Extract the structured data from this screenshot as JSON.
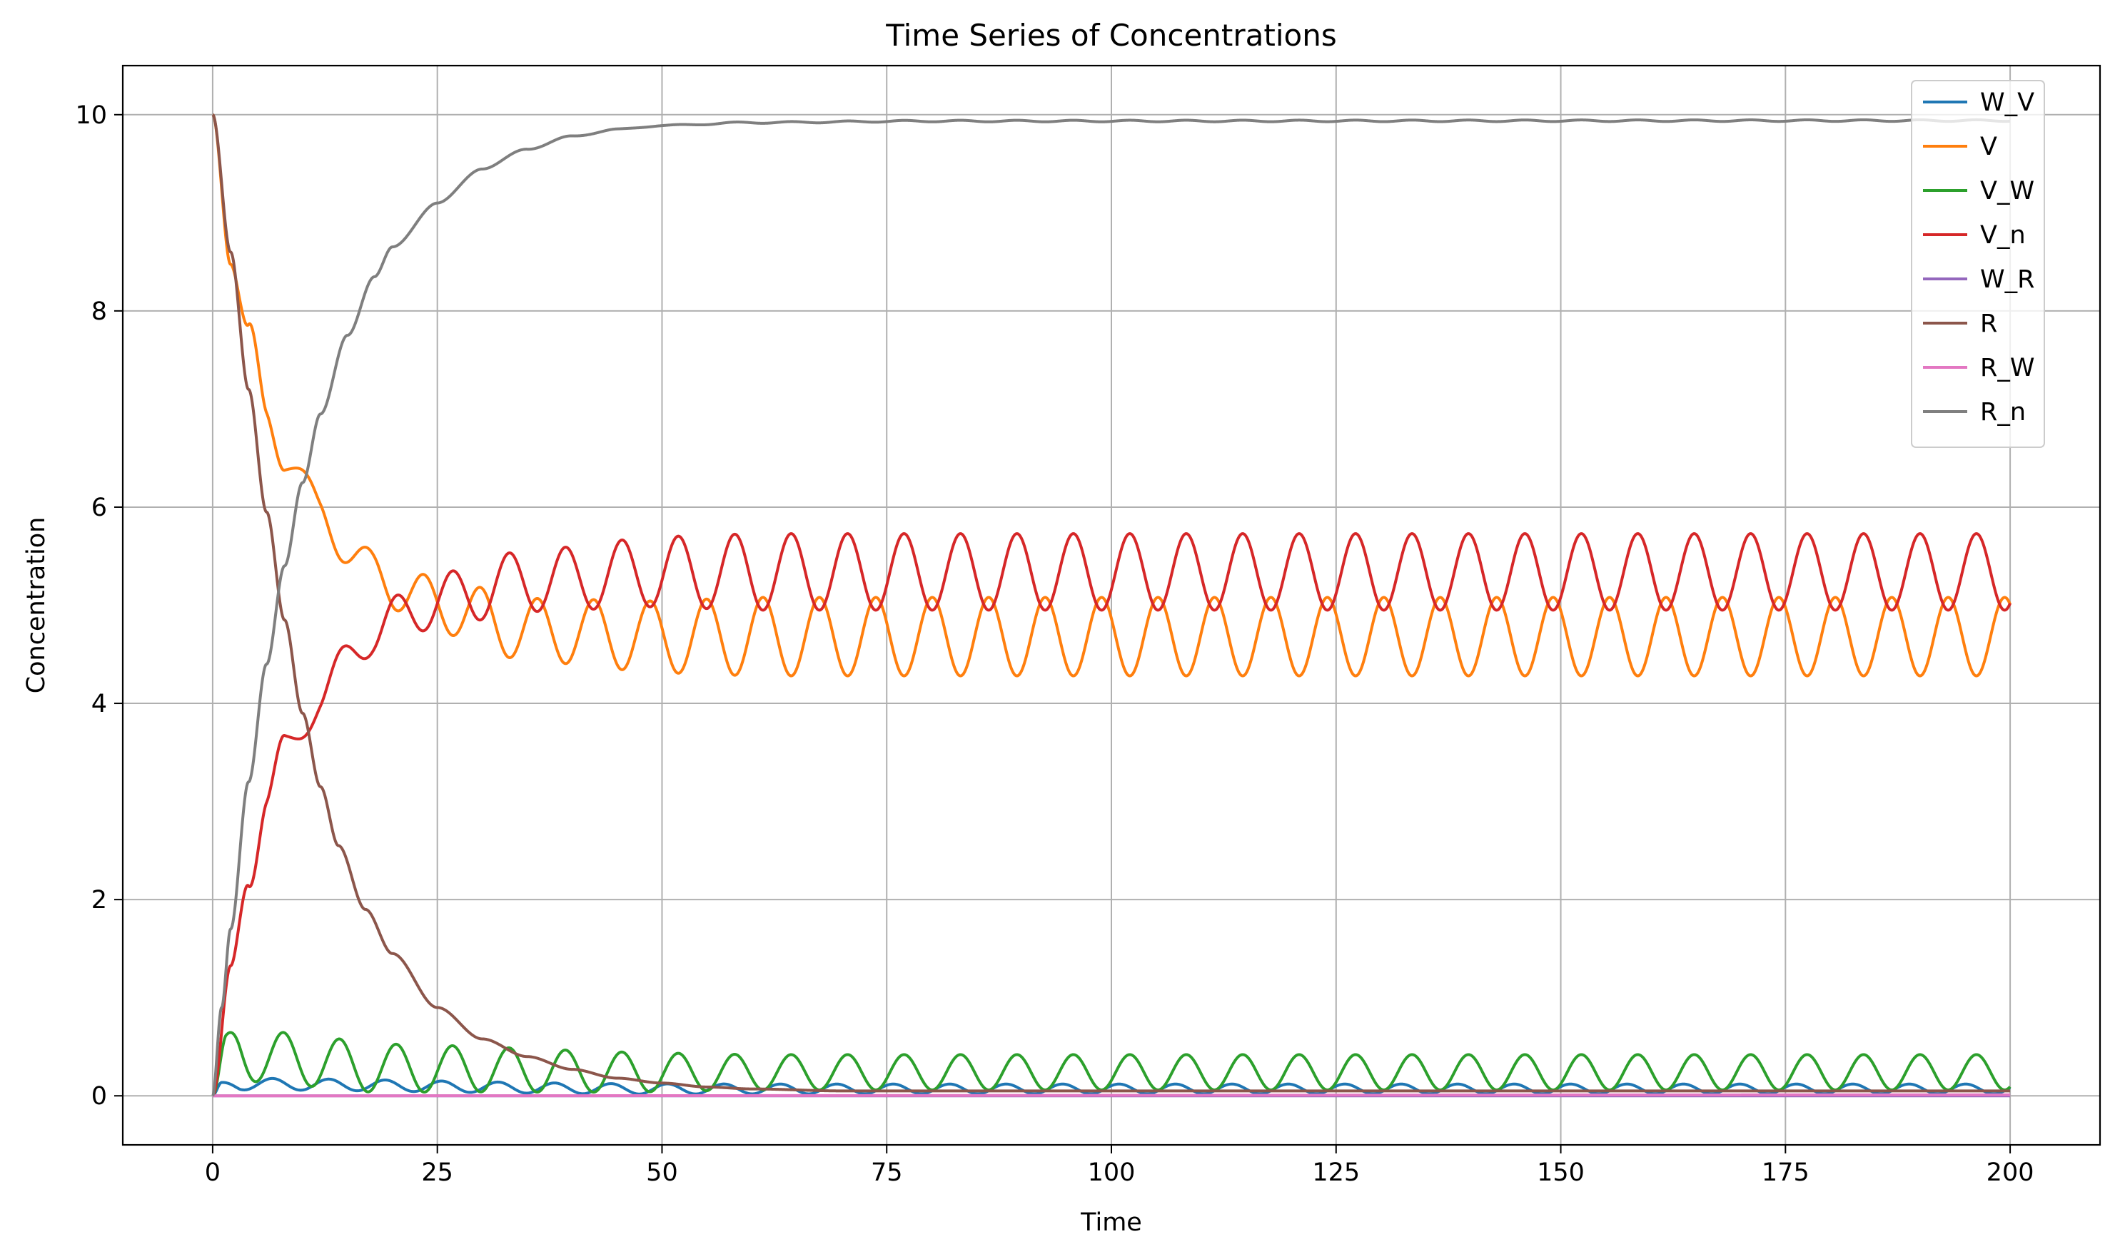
{
  "chart_data": {
    "type": "line",
    "title": "Time Series of Concentrations",
    "xlabel": "Time",
    "ylabel": "Concentration",
    "xlim": [
      -10,
      210
    ],
    "ylim": [
      -0.5,
      10.5
    ],
    "xticks": [
      0,
      25,
      50,
      75,
      100,
      125,
      150,
      175,
      200
    ],
    "xtick_labels": [
      "0",
      "25",
      "50",
      "75",
      "100",
      "125",
      "150",
      "175",
      "200"
    ],
    "yticks": [
      0,
      2,
      4,
      6,
      8,
      10
    ],
    "ytick_labels": [
      "0",
      "2",
      "4",
      "6",
      "8",
      "10"
    ],
    "grid": true,
    "legend_position": "top-right",
    "oscillation_period": 6.28,
    "series": [
      {
        "name": "W_V",
        "color": "#1f77b4",
        "start": 0,
        "points": [
          [
            0,
            0
          ],
          [
            1,
            0.12
          ],
          [
            50,
            0.07
          ],
          [
            200,
            0.07
          ]
        ],
        "oscillation": {
          "amp_start": 0.06,
          "amp_end": 0.05,
          "phase": 1.2
        }
      },
      {
        "name": "V",
        "color": "#ff7f0e",
        "start": 10,
        "points": [
          [
            0,
            10
          ],
          [
            2,
            8.6
          ],
          [
            4,
            7.7
          ],
          [
            6,
            6.9
          ],
          [
            8,
            6.6
          ],
          [
            12,
            5.9
          ],
          [
            18,
            5.3
          ],
          [
            25,
            5.0
          ],
          [
            35,
            4.75
          ],
          [
            50,
            4.68
          ],
          [
            200,
            4.68
          ]
        ],
        "oscillation": {
          "amp_start": 0.2,
          "amp_end": 0.4,
          "phase": 3.14
        }
      },
      {
        "name": "V_W",
        "color": "#2ca02c",
        "start": 0,
        "points": [
          [
            0,
            0
          ],
          [
            1.5,
            0.48
          ],
          [
            7,
            0.38
          ],
          [
            20,
            0.28
          ],
          [
            50,
            0.24
          ],
          [
            200,
            0.24
          ]
        ],
        "oscillation": {
          "amp_start": 0.28,
          "amp_end": 0.18,
          "phase": 0.0
        }
      },
      {
        "name": "V_n",
        "color": "#d62728",
        "start": 0,
        "points": [
          [
            0,
            0
          ],
          [
            2,
            1.2
          ],
          [
            4,
            2.3
          ],
          [
            6,
            3.05
          ],
          [
            8,
            3.45
          ],
          [
            12,
            4.1
          ],
          [
            18,
            4.75
          ],
          [
            25,
            5.05
          ],
          [
            35,
            5.25
          ],
          [
            50,
            5.34
          ],
          [
            200,
            5.34
          ]
        ],
        "oscillation": {
          "amp_start": 0.2,
          "amp_end": 0.39,
          "phase": 0.0
        }
      },
      {
        "name": "W_R",
        "color": "#9467bd",
        "start": 0,
        "points": [
          [
            0,
            0
          ],
          [
            200,
            0.0
          ]
        ],
        "oscillation": {
          "amp_start": 0,
          "amp_end": 0,
          "phase": 0
        }
      },
      {
        "name": "R",
        "color": "#8c564b",
        "start": 10,
        "points": [
          [
            0,
            10
          ],
          [
            2,
            8.6
          ],
          [
            4,
            7.2
          ],
          [
            6,
            5.95
          ],
          [
            8,
            4.85
          ],
          [
            10,
            3.9
          ],
          [
            12,
            3.15
          ],
          [
            14,
            2.55
          ],
          [
            17,
            1.9
          ],
          [
            20,
            1.45
          ],
          [
            25,
            0.9
          ],
          [
            30,
            0.58
          ],
          [
            35,
            0.4
          ],
          [
            40,
            0.27
          ],
          [
            45,
            0.18
          ],
          [
            50,
            0.13
          ],
          [
            55,
            0.09
          ],
          [
            60,
            0.07
          ],
          [
            70,
            0.05
          ],
          [
            80,
            0.05
          ],
          [
            200,
            0.05
          ]
        ],
        "oscillation": {
          "amp_start": 0,
          "amp_end": 0,
          "phase": 0
        }
      },
      {
        "name": "R_W",
        "color": "#e377c2",
        "start": 0,
        "points": [
          [
            0,
            0
          ],
          [
            200,
            0.01
          ]
        ],
        "oscillation": {
          "amp_start": 0,
          "amp_end": 0,
          "phase": 0
        }
      },
      {
        "name": "R_n",
        "color": "#7f7f7f",
        "start": 0,
        "points": [
          [
            0,
            0
          ],
          [
            1,
            0.9
          ],
          [
            2,
            1.7
          ],
          [
            4,
            3.2
          ],
          [
            6,
            4.4
          ],
          [
            8,
            5.4
          ],
          [
            10,
            6.25
          ],
          [
            12,
            6.95
          ],
          [
            15,
            7.75
          ],
          [
            18,
            8.35
          ],
          [
            20,
            8.65
          ],
          [
            25,
            9.1
          ],
          [
            30,
            9.45
          ],
          [
            35,
            9.65
          ],
          [
            40,
            9.78
          ],
          [
            45,
            9.85
          ],
          [
            50,
            9.89
          ],
          [
            60,
            9.92
          ],
          [
            80,
            9.935
          ],
          [
            200,
            9.94
          ]
        ],
        "oscillation": {
          "amp_start": 0,
          "amp_end": 0.008,
          "phase": 0
        }
      }
    ]
  }
}
